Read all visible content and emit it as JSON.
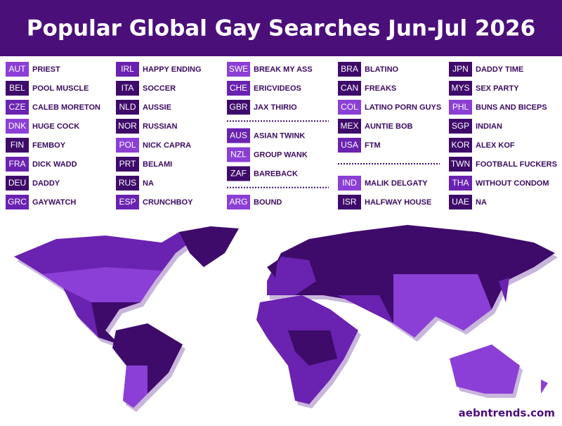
{
  "header": {
    "title": "Popular Global Gay Searches Jun-Jul 2026"
  },
  "columns": [
    {
      "groups": [
        {
          "entries": [
            {
              "code": "AUT",
              "term": "PRIEST",
              "color": "#8b3fd6"
            },
            {
              "code": "BEL",
              "term": "POOL MUSCLE",
              "color": "#3e0b6b"
            },
            {
              "code": "CZE",
              "term": "CALEB MORETON",
              "color": "#6a22b0"
            },
            {
              "code": "DNK",
              "term": "HUGE COCK",
              "color": "#8b3fd6"
            },
            {
              "code": "FIN",
              "term": "FEMBOY",
              "color": "#3e0b6b"
            },
            {
              "code": "FRA",
              "term": "DICK WADD",
              "color": "#6a22b0"
            },
            {
              "code": "DEU",
              "term": "DADDY",
              "color": "#3e0b6b"
            },
            {
              "code": "GRC",
              "term": "GAYWATCH",
              "color": "#6a22b0"
            }
          ]
        }
      ]
    },
    {
      "groups": [
        {
          "entries": [
            {
              "code": "IRL",
              "term": "HAPPY ENDING",
              "color": "#6a22b0"
            },
            {
              "code": "ITA",
              "term": "SOCCER",
              "color": "#3e0b6b"
            },
            {
              "code": "NLD",
              "term": "AUSSIE",
              "color": "#3e0b6b"
            },
            {
              "code": "NOR",
              "term": "RUSSIAN",
              "color": "#3e0b6b"
            },
            {
              "code": "POL",
              "term": "NICK CAPRA",
              "color": "#8b3fd6"
            },
            {
              "code": "PRT",
              "term": "BELAMI",
              "color": "#3e0b6b"
            },
            {
              "code": "RUS",
              "term": "NA",
              "color": "#3e0b6b"
            },
            {
              "code": "ESP",
              "term": "CRUNCHBOY",
              "color": "#6a22b0"
            }
          ]
        }
      ]
    },
    {
      "groups": [
        {
          "entries": [
            {
              "code": "SWE",
              "term": "BREAK MY ASS",
              "color": "#8b3fd6"
            },
            {
              "code": "CHE",
              "term": "ERICVIDEOS",
              "color": "#6a22b0"
            },
            {
              "code": "GBR",
              "term": "JAX THIRIO",
              "color": "#3e0b6b"
            }
          ]
        },
        {
          "entries": [
            {
              "code": "AUS",
              "term": "ASIAN TWINK",
              "color": "#6a22b0"
            },
            {
              "code": "NZL",
              "term": "GROUP WANK",
              "color": "#8b3fd6"
            },
            {
              "code": "ZAF",
              "term": "BAREBACK",
              "color": "#3e0b6b"
            }
          ]
        },
        {
          "entries": [
            {
              "code": "ARG",
              "term": "BOUND",
              "color": "#8b3fd6"
            }
          ]
        }
      ]
    },
    {
      "groups": [
        {
          "entries": [
            {
              "code": "BRA",
              "term": "BLATINO",
              "color": "#3e0b6b"
            },
            {
              "code": "CAN",
              "term": "FREAKS",
              "color": "#3e0b6b"
            },
            {
              "code": "COL",
              "term": "LATINO PORN GUYS",
              "color": "#8b3fd6"
            },
            {
              "code": "MEX",
              "term": "AUNTIE BOB",
              "color": "#3e0b6b"
            },
            {
              "code": "USA",
              "term": "FTM",
              "color": "#6a22b0"
            }
          ]
        },
        {
          "entries": [
            {
              "code": "IND",
              "term": "MALIK DELGATY",
              "color": "#8b3fd6"
            },
            {
              "code": "ISR",
              "term": "HALFWAY HOUSE",
              "color": "#3e0b6b"
            }
          ]
        }
      ]
    },
    {
      "groups": [
        {
          "entries": [
            {
              "code": "JPN",
              "term": "DADDY TIME",
              "color": "#3e0b6b"
            },
            {
              "code": "MYS",
              "term": "SEX PARTY",
              "color": "#3e0b6b"
            },
            {
              "code": "PHL",
              "term": "BUNS AND BICEPS",
              "color": "#8b3fd6"
            },
            {
              "code": "SGP",
              "term": "INDIAN",
              "color": "#3e0b6b"
            },
            {
              "code": "KOR",
              "term": "ALEX KOF",
              "color": "#3e0b6b"
            },
            {
              "code": "TWN",
              "term": "FOOTBALL FUCKERS",
              "color": "#3e0b6b"
            },
            {
              "code": "THA",
              "term": "WITHOUT CONDOM",
              "color": "#6a22b0"
            },
            {
              "code": "UAE",
              "term": "NA",
              "color": "#3e0b6b"
            }
          ]
        }
      ]
    }
  ],
  "footer": {
    "url": "aebntrends.com"
  }
}
